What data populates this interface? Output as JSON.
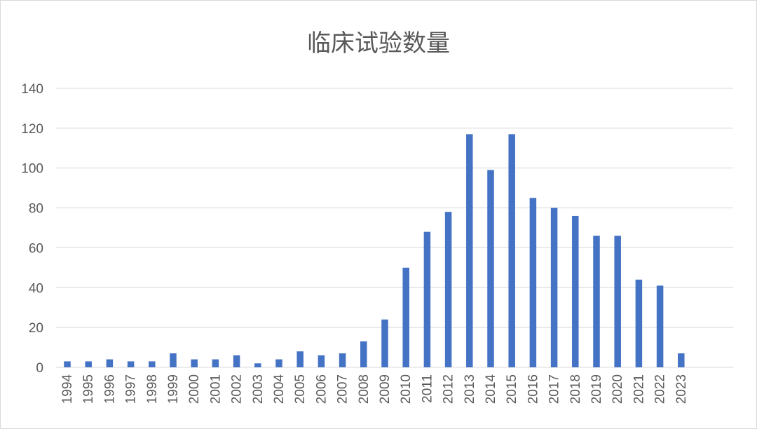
{
  "chart_data": {
    "type": "bar",
    "title": "临床试验数量",
    "xlabel": "",
    "ylabel": "",
    "ylim": [
      0,
      140
    ],
    "yticks": [
      0,
      20,
      40,
      60,
      80,
      100,
      120,
      140
    ],
    "grid": true,
    "legend": "none",
    "bar_color": "#4472c4",
    "categories": [
      "1994",
      "1995",
      "1996",
      "1997",
      "1998",
      "1999",
      "2000",
      "2001",
      "2002",
      "2003",
      "2004",
      "2005",
      "2006",
      "2007",
      "2008",
      "2009",
      "2010",
      "2011",
      "2012",
      "2013",
      "2014",
      "2015",
      "2016",
      "2017",
      "2018",
      "2019",
      "2020",
      "2021",
      "2022",
      "2023"
    ],
    "values": [
      3,
      3,
      4,
      3,
      3,
      7,
      4,
      4,
      6,
      2,
      4,
      8,
      6,
      7,
      13,
      24,
      50,
      68,
      78,
      117,
      99,
      117,
      85,
      80,
      76,
      66,
      66,
      44,
      41,
      7
    ]
  }
}
